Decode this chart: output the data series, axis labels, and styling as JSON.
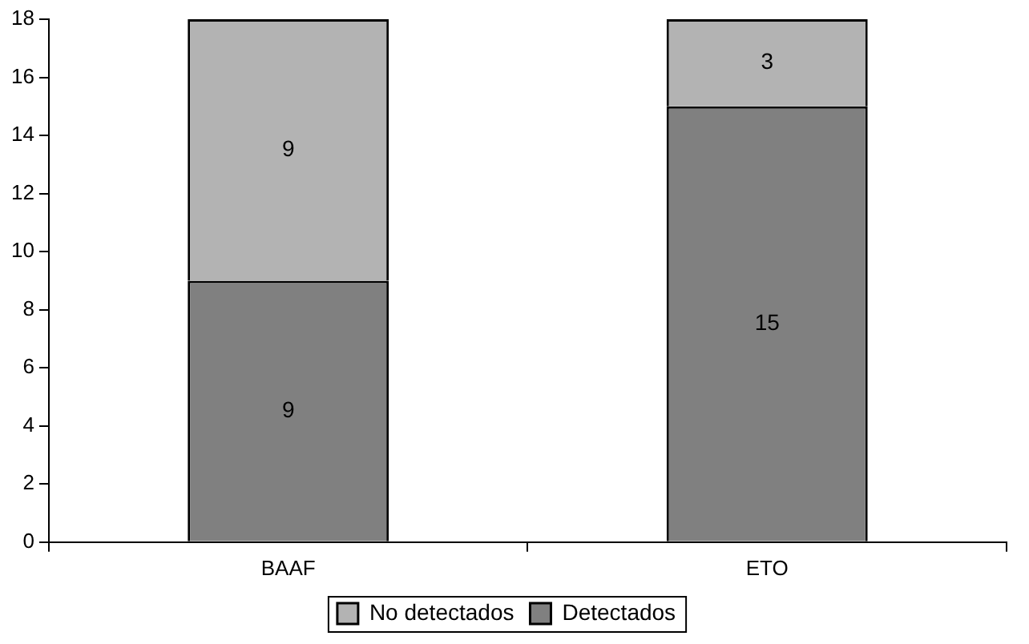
{
  "chart_data": {
    "type": "bar",
    "stacked": true,
    "categories": [
      "BAAF",
      "ETO"
    ],
    "series": [
      {
        "name": "Detectados",
        "color": "#808080",
        "values": [
          9,
          15
        ]
      },
      {
        "name": "No detectados",
        "color": "#b3b3b3",
        "values": [
          9,
          3
        ]
      }
    ],
    "ylim": [
      0,
      18
    ],
    "yticks": [
      0,
      2,
      4,
      6,
      8,
      10,
      12,
      14,
      16,
      18
    ],
    "grid": false,
    "legend": "bottom",
    "data_labels": true
  }
}
